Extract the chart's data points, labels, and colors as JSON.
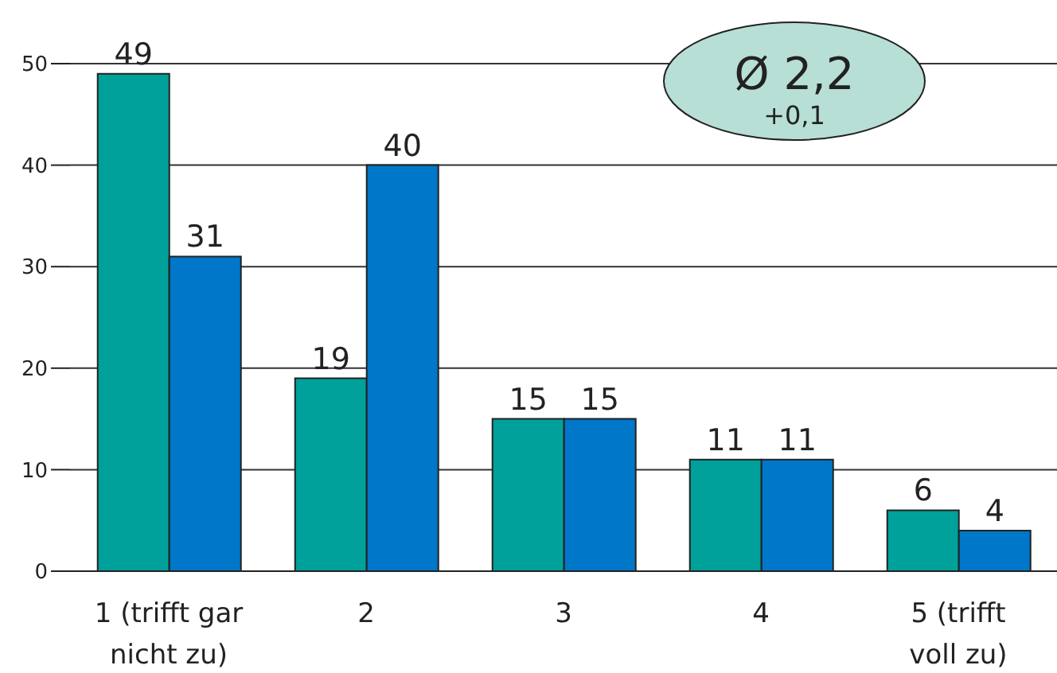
{
  "chart_data": {
    "type": "bar",
    "categories": [
      "1 (trifft gar nicht zu)",
      "2",
      "3",
      "4",
      "5 (trifft voll zu)"
    ],
    "series": [
      {
        "color": "#00a19a",
        "values": [
          49,
          19,
          15,
          11,
          6
        ]
      },
      {
        "color": "#0077c8",
        "values": [
          31,
          40,
          15,
          11,
          4
        ]
      }
    ],
    "ylim": [
      0,
      50
    ],
    "yticks": [
      0,
      10,
      20,
      30,
      40,
      50
    ],
    "grid": "y",
    "data_labels": true,
    "annotations": [
      "Ø 2,2",
      "+0,1"
    ]
  }
}
